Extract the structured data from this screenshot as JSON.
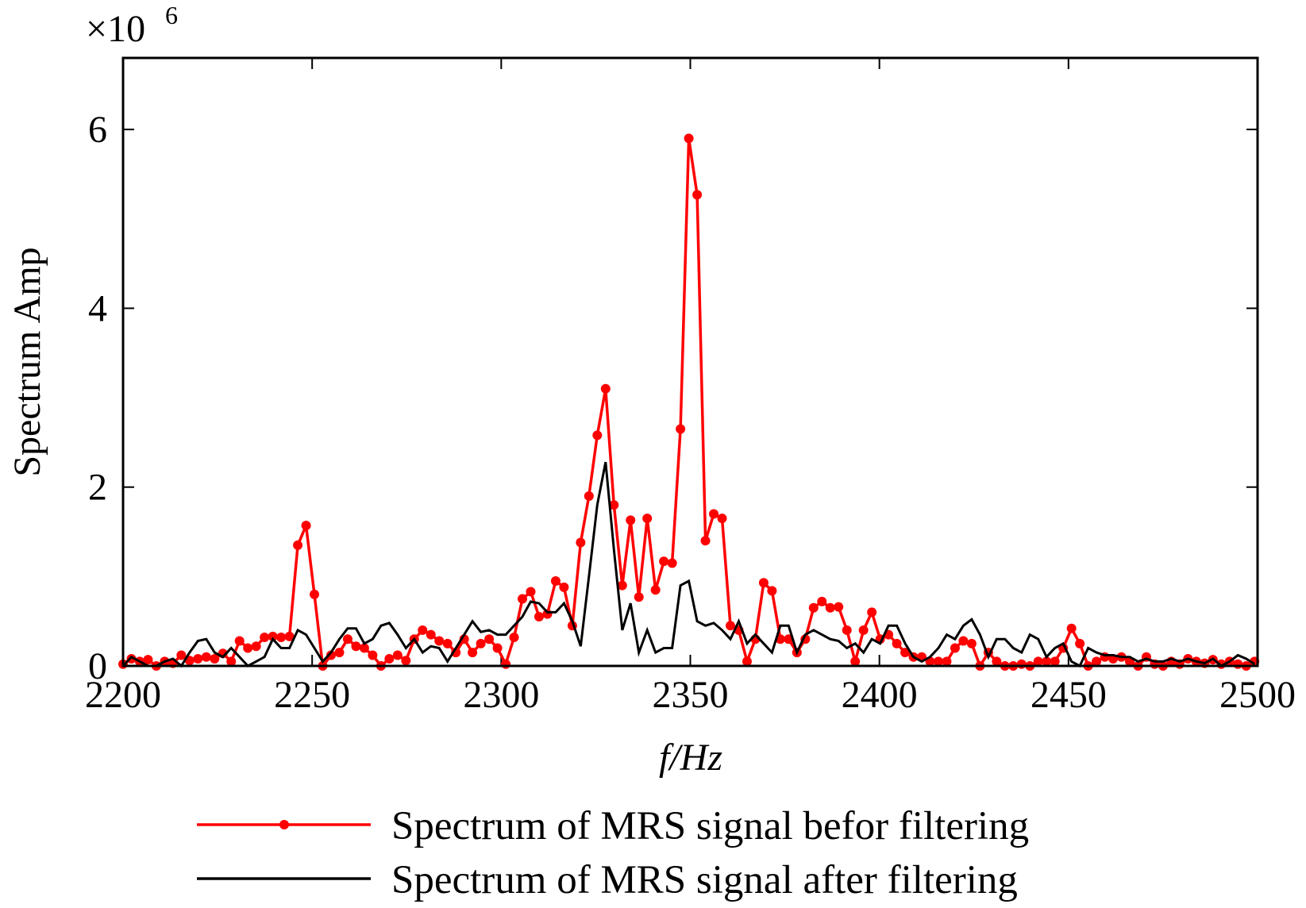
{
  "chart_data": {
    "type": "line",
    "ylabel": "Spectrum Amp",
    "xlabel": "f/Hz",
    "y_multiplier": "×10",
    "y_multiplier_exponent": "6",
    "xlim": [
      2200,
      2500
    ],
    "xticks": [
      2200,
      2250,
      2300,
      2350,
      2400,
      2450,
      2500
    ],
    "ylim": [
      0,
      6.8
    ],
    "yticks": [
      0,
      2,
      4,
      6
    ],
    "x": [
      2200,
      2202.2,
      2204.4,
      2206.6,
      2208.8,
      2211,
      2213.2,
      2215.4,
      2217.6,
      2219.8,
      2222,
      2224.2,
      2226.4,
      2228.6,
      2230.8,
      2233,
      2235.2,
      2237.4,
      2239.6,
      2241.8,
      2244,
      2246.2,
      2248.4,
      2250.6,
      2252.8,
      2255,
      2257.2,
      2259.4,
      2261.6,
      2263.8,
      2266,
      2268.2,
      2270.4,
      2272.6,
      2274.8,
      2277,
      2279.2,
      2281.4,
      2283.6,
      2285.8,
      2288,
      2290.2,
      2292.4,
      2294.6,
      2296.8,
      2299,
      2301.2,
      2303.4,
      2305.6,
      2307.8,
      2310,
      2312.2,
      2314.4,
      2316.6,
      2318.8,
      2321,
      2323.2,
      2325.4,
      2327.6,
      2329.8,
      2332,
      2334.2,
      2336.4,
      2338.6,
      2340.8,
      2343,
      2345.2,
      2347.4,
      2349.6,
      2351.8,
      2354,
      2356.2,
      2358.4,
      2360.6,
      2362.8,
      2365,
      2367.2,
      2369.4,
      2371.6,
      2373.8,
      2376,
      2378.2,
      2380.4,
      2382.6,
      2384.8,
      2387,
      2389.2,
      2391.4,
      2393.6,
      2395.8,
      2398,
      2400.2,
      2402.4,
      2404.6,
      2406.8,
      2409,
      2411.2,
      2413.4,
      2415.6,
      2417.8,
      2420,
      2422.2,
      2424.4,
      2426.6,
      2428.8,
      2431,
      2433.2,
      2435.4,
      2437.6,
      2439.8,
      2442,
      2444.2,
      2446.4,
      2448.6,
      2450.8,
      2453,
      2455.2,
      2457.4,
      2459.6,
      2461.8,
      2464,
      2466.2,
      2468.4,
      2470.6,
      2472.8,
      2475,
      2477.2,
      2479.4,
      2481.6,
      2483.8,
      2486,
      2488.2,
      2490.4,
      2492.6,
      2494.8,
      2497,
      2499.2
    ],
    "series": [
      {
        "name": "Spectrum of MRS signal befor filtering",
        "color": "#ff0000",
        "markers": true,
        "values": [
          0.02,
          0.08,
          0.05,
          0.07,
          0.0,
          0.05,
          0.03,
          0.12,
          0.06,
          0.08,
          0.1,
          0.08,
          0.14,
          0.05,
          0.28,
          0.2,
          0.22,
          0.32,
          0.33,
          0.32,
          0.33,
          1.35,
          1.57,
          0.8,
          0.0,
          0.12,
          0.15,
          0.3,
          0.22,
          0.2,
          0.12,
          0.0,
          0.08,
          0.12,
          0.06,
          0.3,
          0.4,
          0.35,
          0.28,
          0.25,
          0.15,
          0.3,
          0.15,
          0.25,
          0.3,
          0.2,
          0.02,
          0.32,
          0.75,
          0.83,
          0.55,
          0.58,
          0.95,
          0.88,
          0.45,
          1.38,
          1.9,
          2.58,
          3.1,
          1.8,
          0.9,
          1.63,
          0.77,
          1.65,
          0.85,
          1.17,
          1.15,
          2.65,
          5.9,
          5.27,
          1.4,
          1.7,
          1.65,
          0.45,
          0.4,
          0.05,
          0.3,
          0.93,
          0.84,
          0.3,
          0.3,
          0.15,
          0.3,
          0.65,
          0.72,
          0.65,
          0.66,
          0.4,
          0.05,
          0.4,
          0.6,
          0.3,
          0.35,
          0.25,
          0.15,
          0.1,
          0.1,
          0.05,
          0.05,
          0.05,
          0.2,
          0.28,
          0.25,
          0.0,
          0.15,
          0.05,
          0.0,
          0.0,
          0.02,
          0.0,
          0.05,
          0.05,
          0.05,
          0.2,
          0.42,
          0.25,
          0.0,
          0.05,
          0.1,
          0.08,
          0.1,
          0.05,
          0.0,
          0.1,
          0.02,
          0.0,
          0.05,
          0.02,
          0.08,
          0.05,
          0.03,
          0.07,
          0.02,
          0.05,
          0.02,
          0.0,
          0.05
        ]
      },
      {
        "name": "Spectrum of MRS signal after filtering",
        "color": "#000000",
        "markers": false,
        "values": [
          0.0,
          0.1,
          0.05,
          0.0,
          0.0,
          0.05,
          0.08,
          0.0,
          0.15,
          0.28,
          0.3,
          0.15,
          0.1,
          0.2,
          0.1,
          0.0,
          0.05,
          0.1,
          0.3,
          0.2,
          0.2,
          0.4,
          0.35,
          0.2,
          0.05,
          0.15,
          0.3,
          0.42,
          0.42,
          0.25,
          0.3,
          0.45,
          0.48,
          0.35,
          0.2,
          0.3,
          0.15,
          0.22,
          0.2,
          0.05,
          0.2,
          0.35,
          0.5,
          0.38,
          0.4,
          0.35,
          0.35,
          0.45,
          0.55,
          0.72,
          0.7,
          0.6,
          0.6,
          0.7,
          0.5,
          0.22,
          1.0,
          1.8,
          2.28,
          1.3,
          0.4,
          0.7,
          0.15,
          0.4,
          0.15,
          0.2,
          0.2,
          0.9,
          0.95,
          0.5,
          0.45,
          0.48,
          0.4,
          0.3,
          0.5,
          0.25,
          0.35,
          0.25,
          0.15,
          0.45,
          0.45,
          0.15,
          0.35,
          0.4,
          0.35,
          0.3,
          0.28,
          0.2,
          0.25,
          0.15,
          0.3,
          0.25,
          0.45,
          0.45,
          0.25,
          0.1,
          0.05,
          0.1,
          0.2,
          0.35,
          0.3,
          0.45,
          0.52,
          0.35,
          0.1,
          0.3,
          0.3,
          0.2,
          0.15,
          0.35,
          0.3,
          0.1,
          0.2,
          0.25,
          0.05,
          0.0,
          0.2,
          0.15,
          0.12,
          0.12,
          0.1,
          0.1,
          0.05,
          0.08,
          0.05,
          0.05,
          0.08,
          0.05,
          0.08,
          0.05,
          0.03,
          0.08,
          0.0,
          0.05,
          0.12,
          0.08,
          0.02
        ]
      }
    ]
  }
}
